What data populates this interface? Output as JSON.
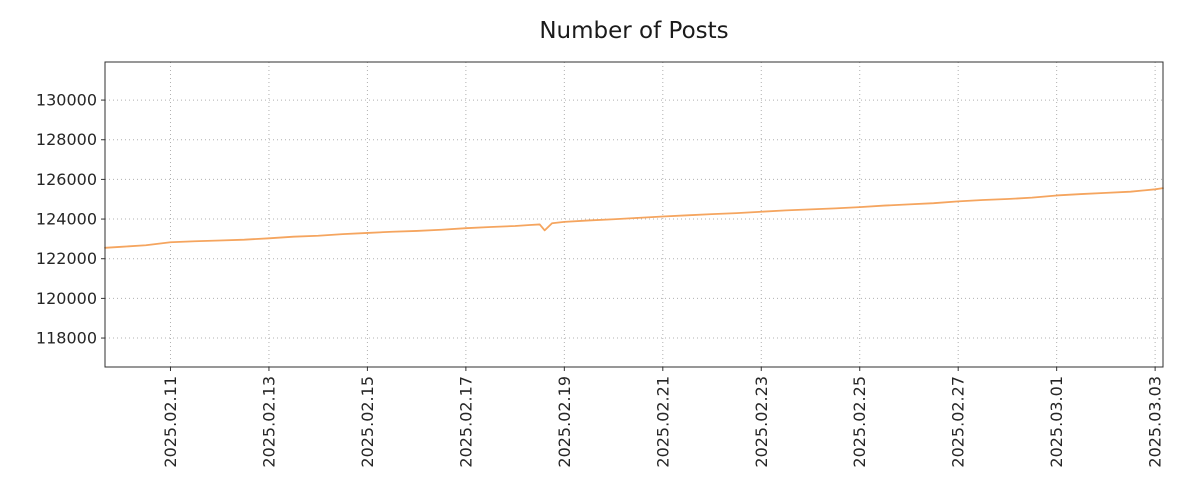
{
  "title": "Number of Posts",
  "colors": {
    "line": "#f5a55f",
    "grid": "#b0b0b0",
    "axis": "#2f2f2f",
    "text": "#262626",
    "background": "#ffffff"
  },
  "chart_data": {
    "type": "line",
    "title": "Number of Posts",
    "xlabel": "",
    "ylabel": "",
    "legend": null,
    "grid": "dotted",
    "series_name": "posts",
    "x_unit": "days since 2025-02-09 00:00",
    "xlim": [
      0.67,
      22.16
    ],
    "ylim": [
      116540,
      131920
    ],
    "xtick_pos": [
      2,
      4,
      6,
      8,
      10,
      12,
      14,
      16,
      18,
      20,
      22
    ],
    "xtick_labels": [
      "2025.02.11",
      "2025.02.13",
      "2025.02.15",
      "2025.02.17",
      "2025.02.19",
      "2025.02.21",
      "2025.02.23",
      "2025.02.25",
      "2025.02.27",
      "2025.03.01",
      "2025.03.03"
    ],
    "ytick_values": [
      118000,
      120000,
      122000,
      124000,
      126000,
      128000,
      130000
    ],
    "ytick_labels": [
      "118000",
      "120000",
      "122000",
      "124000",
      "126000",
      "128000",
      "130000"
    ],
    "x": [
      0.67,
      1,
      1.5,
      2,
      2.5,
      3,
      3.5,
      4,
      4.5,
      5,
      5.5,
      6,
      6.5,
      7,
      7.5,
      8,
      8.5,
      9,
      9.3,
      9.5,
      9.6,
      9.75,
      10,
      10.5,
      11,
      11.5,
      12,
      12.5,
      13,
      13.5,
      14,
      14.5,
      15,
      15.5,
      16,
      16.5,
      17,
      17.5,
      18,
      18.5,
      19,
      19.5,
      20,
      20.5,
      21,
      21.5,
      22,
      22.16
    ],
    "values": [
      122550,
      122600,
      122680,
      122830,
      122880,
      122920,
      122960,
      123030,
      123110,
      123160,
      123240,
      123300,
      123360,
      123400,
      123460,
      123540,
      123600,
      123650,
      123700,
      123730,
      123430,
      123790,
      123860,
      123930,
      123990,
      124060,
      124130,
      124190,
      124250,
      124300,
      124370,
      124440,
      124490,
      124540,
      124600,
      124680,
      124740,
      124800,
      124890,
      124960,
      125010,
      125080,
      125190,
      125260,
      125320,
      125380,
      125500,
      125560
    ]
  }
}
